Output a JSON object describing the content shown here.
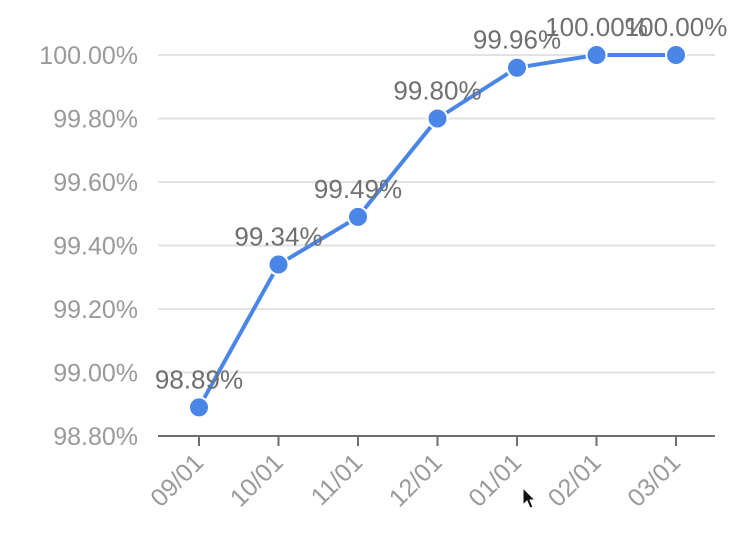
{
  "chart_data": {
    "type": "line",
    "title": "",
    "xlabel": "",
    "ylabel": "",
    "categories": [
      "09/01",
      "10/01",
      "11/01",
      "12/01",
      "01/01",
      "02/01",
      "03/01"
    ],
    "series": [
      {
        "values": [
          98.89,
          99.34,
          99.49,
          99.8,
          99.96,
          100.0,
          100.0
        ],
        "data_labels": [
          "98.89%",
          "99.34%",
          "99.49%",
          "99.80%",
          "99.96%",
          "100.00%",
          "100.00%"
        ],
        "color": "#4a86e8"
      }
    ],
    "yticks": [
      98.8,
      99.0,
      99.2,
      99.4,
      99.6,
      99.8,
      100.0
    ],
    "ytick_labels": [
      "98.80%",
      "99.00%",
      "99.20%",
      "99.40%",
      "99.60%",
      "99.80%",
      "100.00%"
    ],
    "ylim": [
      98.8,
      100.0
    ],
    "grid": true,
    "legend": "none"
  },
  "colors": {
    "line": "#4a86e8",
    "grid": "#e2e2e2",
    "axis": "#6e6e6e",
    "tick_text": "#9a9a9a",
    "label_text": "#6f6f6f"
  },
  "cursor_icon": "mouse-pointer-icon"
}
